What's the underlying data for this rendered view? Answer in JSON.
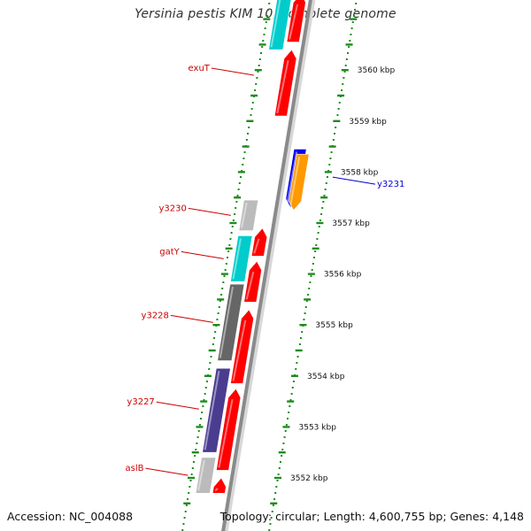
{
  "title": "Yersinia pestis KIM 10, complete genome",
  "footer": {
    "accession": "Accession: NC_004088",
    "summary": "Topology: circular; Length: 4,600,755 bp; Genes: 4,148"
  },
  "colors": {
    "backbone_dark": "#8a8a8a",
    "backbone_light": "#d8d8d8",
    "dots": "#1e8c1e",
    "cds_red": "#ff0000",
    "label_red": "#cc0000",
    "label_blue": "#0000cc",
    "cyan": "#00cccc",
    "light_gray": "#bbbbbb",
    "dark_gray": "#666666",
    "navy": "#4a3d90",
    "blue": "#0000ee",
    "orange": "#ff9900"
  },
  "chart_data": {
    "type": "genome_map",
    "scale_ticks": [
      {
        "kbp": 3552,
        "label": "3552 kbp"
      },
      {
        "kbp": 3553,
        "label": "3553 kbp"
      },
      {
        "kbp": 3554,
        "label": "3554 kbp"
      },
      {
        "kbp": 3555,
        "label": "3555 kbp"
      },
      {
        "kbp": 3556,
        "label": "3556 kbp"
      },
      {
        "kbp": 3557,
        "label": "3557 kbp"
      },
      {
        "kbp": 3558,
        "label": "3558 kbp"
      },
      {
        "kbp": 3559,
        "label": "3559 kbp"
      },
      {
        "kbp": 3560,
        "label": "3560 kbp"
      }
    ],
    "features": [
      {
        "track": "fwd",
        "start": 3551.7,
        "end": 3552.0,
        "color": "cds_red"
      },
      {
        "track": "fwd",
        "start": 3552.15,
        "end": 3553.75,
        "color": "cds_red"
      },
      {
        "track": "fwd",
        "start": 3553.85,
        "end": 3555.3,
        "color": "cds_red"
      },
      {
        "track": "fwd",
        "start": 3555.45,
        "end": 3556.25,
        "color": "cds_red"
      },
      {
        "track": "fwd",
        "start": 3556.35,
        "end": 3556.9,
        "color": "cds_red"
      },
      {
        "track": "fwd",
        "start": 3559.1,
        "end": 3560.4,
        "color": "cds_red"
      },
      {
        "track": "fwd",
        "start": 3560.55,
        "end": 3561.5,
        "color": "cds_red"
      },
      {
        "track": "outer",
        "start": 3551.7,
        "end": 3552.4,
        "color": "light_gray"
      },
      {
        "track": "outer",
        "start": 3552.5,
        "end": 3554.15,
        "color": "navy"
      },
      {
        "track": "outer",
        "start": 3554.3,
        "end": 3555.8,
        "color": "dark_gray"
      },
      {
        "track": "outer",
        "start": 3555.85,
        "end": 3556.75,
        "color": "cyan"
      },
      {
        "track": "outer",
        "start": 3556.85,
        "end": 3557.45,
        "color": "light_gray"
      },
      {
        "track": "outer",
        "start": 3560.4,
        "end": 3561.5,
        "color": "cyan"
      },
      {
        "track": "rev",
        "start": 3557.3,
        "end": 3558.45,
        "color": "blue"
      },
      {
        "track": "innerB",
        "start": 3557.25,
        "end": 3558.35,
        "color": "orange"
      }
    ],
    "labels": [
      {
        "text": "exuT",
        "kbp": 3559.9,
        "side": "left",
        "color": "label_red"
      },
      {
        "text": "y3230",
        "kbp": 3557.15,
        "side": "left",
        "color": "label_red"
      },
      {
        "text": "gatY",
        "kbp": 3556.3,
        "side": "left",
        "color": "label_red"
      },
      {
        "text": "y3228",
        "kbp": 3555.05,
        "side": "left",
        "color": "label_red"
      },
      {
        "text": "y3227",
        "kbp": 3553.35,
        "side": "left",
        "color": "label_red"
      },
      {
        "text": "aslB",
        "kbp": 3552.05,
        "side": "left",
        "color": "label_red"
      },
      {
        "text": "y3231",
        "kbp": 3557.9,
        "side": "right",
        "color": "label_blue"
      }
    ]
  }
}
